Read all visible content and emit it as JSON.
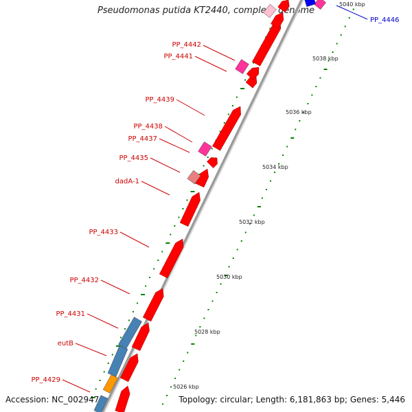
{
  "title": "Pseudomonas putida KT2440, complete genome",
  "footer": {
    "accession": "Accession: NC_002947",
    "summary": "Topology: circular; Length: 6,181,863 bp; Genes: 5,446"
  },
  "colors": {
    "forward_gene": "#ff0000",
    "reverse_gene_pink": "#ff3399",
    "rna_gene": "#e88080",
    "blue_feature": "#4682b4",
    "orange_feature": "#ff9900",
    "label_red": "#cc0000",
    "label_blue": "#0000cc",
    "tick_green": "#008000",
    "backbone": "#999999"
  },
  "kbp_ticks": [
    "5026 kbp",
    "5028 kbp",
    "5030 kbp",
    "5032 kbp",
    "5034 kbp",
    "5036 kbp",
    "5038 kbp",
    "5040 kbp"
  ],
  "gene_labels": [
    {
      "name": "PP_4446",
      "color": "blue"
    },
    {
      "name": "PP_4442",
      "color": "red"
    },
    {
      "name": "PP_4441",
      "color": "red"
    },
    {
      "name": "PP_4439",
      "color": "red"
    },
    {
      "name": "PP_4438",
      "color": "red"
    },
    {
      "name": "PP_4437",
      "color": "red"
    },
    {
      "name": "PP_4435",
      "color": "red"
    },
    {
      "name": "dadA-1",
      "color": "red"
    },
    {
      "name": "PP_4433",
      "color": "red"
    },
    {
      "name": "PP_4432",
      "color": "red"
    },
    {
      "name": "PP_4431",
      "color": "red"
    },
    {
      "name": "eutB",
      "color": "red"
    },
    {
      "name": "PP_4429",
      "color": "red"
    }
  ]
}
